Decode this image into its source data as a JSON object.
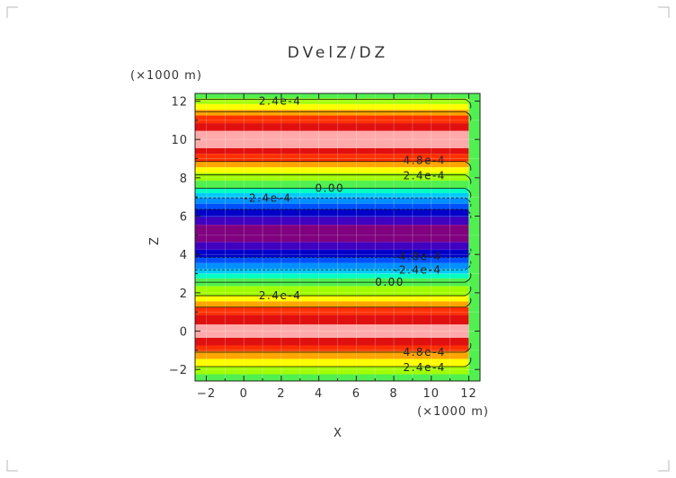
{
  "chart_data": {
    "type": "heatmap",
    "title": "DVelZ/DZ",
    "xlabel": "X",
    "ylabel": "Z",
    "x_unit_label": "(×1000 m)",
    "y_unit_label": "(×1000 m)",
    "xlim": [
      -2.6,
      12.6
    ],
    "ylim": [
      -2.6,
      12.4
    ],
    "x_ticks": [
      -2,
      0,
      2,
      4,
      6,
      8,
      10,
      12
    ],
    "y_ticks": [
      -2,
      0,
      2,
      4,
      6,
      8,
      10,
      12
    ],
    "grid": true,
    "colormap": {
      "levels": [
        -0.00072,
        -0.0006,
        -0.00048,
        -0.00036,
        -0.00024,
        -0.00012,
        0.0,
        0.00012,
        0.00024,
        0.00036,
        0.00048,
        0.0006,
        0.00072
      ],
      "colors": [
        "#800080",
        "#4000c0",
        "#0000c8",
        "#0050ff",
        "#0090ff",
        "#00c8ff",
        "#00ffc0",
        "#50f050",
        "#a0ff00",
        "#ffff00",
        "#ffa500",
        "#ff3000",
        "#e01010",
        "#ffaaaa"
      ]
    },
    "field": {
      "description": "DVelZ/DZ varies with Z only, x-independent except near x = 12",
      "bands_z": [
        {
          "z_from": -2.6,
          "z_to": -2.25,
          "value": 6e-05
        },
        {
          "z_from": -2.25,
          "z_to": -1.85,
          "value": 0.00018
        },
        {
          "z_from": -1.85,
          "z_to": -1.45,
          "value": 0.0003
        },
        {
          "z_from": -1.45,
          "z_to": -1.05,
          "value": 0.00042
        },
        {
          "z_from": -1.05,
          "z_to": -0.75,
          "value": 0.00054
        },
        {
          "z_from": -0.75,
          "z_to": -0.35,
          "value": 0.00066
        },
        {
          "z_from": -0.35,
          "z_to": 0.35,
          "value": 0.00078
        },
        {
          "z_from": 0.35,
          "z_to": 0.85,
          "value": 0.00066
        },
        {
          "z_from": 0.85,
          "z_to": 1.25,
          "value": 0.00054
        },
        {
          "z_from": 1.25,
          "z_to": 1.55,
          "value": 0.00042
        },
        {
          "z_from": 1.55,
          "z_to": 1.85,
          "value": 0.0003
        },
        {
          "z_from": 1.85,
          "z_to": 2.35,
          "value": 0.00018
        },
        {
          "z_from": 2.35,
          "z_to": 2.75,
          "value": 6e-05
        },
        {
          "z_from": 2.75,
          "z_to": 3.0,
          "value": -6e-05
        },
        {
          "z_from": 3.0,
          "z_to": 3.25,
          "value": -0.00018
        },
        {
          "z_from": 3.25,
          "z_to": 3.55,
          "value": -0.0003
        },
        {
          "z_from": 3.55,
          "z_to": 3.85,
          "value": -0.00042
        },
        {
          "z_from": 3.85,
          "z_to": 4.25,
          "value": -0.00054
        },
        {
          "z_from": 4.25,
          "z_to": 4.65,
          "value": -0.00066
        },
        {
          "z_from": 4.65,
          "z_to": 5.55,
          "value": -0.00078
        },
        {
          "z_from": 5.55,
          "z_to": 5.95,
          "value": -0.00066
        },
        {
          "z_from": 5.95,
          "z_to": 6.35,
          "value": -0.00054
        },
        {
          "z_from": 6.35,
          "z_to": 6.65,
          "value": -0.00042
        },
        {
          "z_from": 6.65,
          "z_to": 6.95,
          "value": -0.0003
        },
        {
          "z_from": 6.95,
          "z_to": 7.2,
          "value": -0.00018
        },
        {
          "z_from": 7.2,
          "z_to": 7.45,
          "value": -6e-05
        },
        {
          "z_from": 7.45,
          "z_to": 7.85,
          "value": 6e-05
        },
        {
          "z_from": 7.85,
          "z_to": 8.25,
          "value": 0.00018
        },
        {
          "z_from": 8.25,
          "z_to": 8.55,
          "value": 0.0003
        },
        {
          "z_from": 8.55,
          "z_to": 8.85,
          "value": 0.00042
        },
        {
          "z_from": 8.85,
          "z_to": 9.25,
          "value": 0.00054
        },
        {
          "z_from": 9.25,
          "z_to": 9.55,
          "value": 0.00066
        },
        {
          "z_from": 9.55,
          "z_to": 10.45,
          "value": 0.00078
        },
        {
          "z_from": 10.45,
          "z_to": 10.85,
          "value": 0.00066
        },
        {
          "z_from": 10.85,
          "z_to": 11.25,
          "value": 0.00054
        },
        {
          "z_from": 11.25,
          "z_to": 11.55,
          "value": 0.00042
        },
        {
          "z_from": 11.55,
          "z_to": 11.85,
          "value": 0.0003
        },
        {
          "z_from": 11.85,
          "z_to": 12.15,
          "value": 0.00018
        },
        {
          "z_from": 12.15,
          "z_to": 12.4,
          "value": 6e-05
        }
      ],
      "edge_x_from": 12.0,
      "edge_value": 0.0001
    },
    "contour_labels": [
      {
        "text": "2.4e-4",
        "x": 0.8,
        "z": 12.0,
        "dashed": false
      },
      {
        "text": "4.8e-4",
        "x": 8.5,
        "z": 8.9,
        "dashed": false
      },
      {
        "text": "2.4e-4",
        "x": 8.5,
        "z": 8.1,
        "dashed": false
      },
      {
        "text": "0.00",
        "x": 3.8,
        "z": 7.45,
        "dashed": false
      },
      {
        "text": "-2.4e-4",
        "x": 0.0,
        "z": 6.95,
        "dashed": true
      },
      {
        "text": "-4.8e-4",
        "x": 8.0,
        "z": 3.9,
        "dashed": true
      },
      {
        "text": "-2.4e-4",
        "x": 8.0,
        "z": 3.2,
        "dashed": true
      },
      {
        "text": "0.00",
        "x": 7.0,
        "z": 2.55,
        "dashed": false
      },
      {
        "text": "2.4e-4",
        "x": 0.8,
        "z": 1.85,
        "dashed": false
      },
      {
        "text": "4.8e-4",
        "x": 8.5,
        "z": -1.1,
        "dashed": false
      },
      {
        "text": "2.4e-4",
        "x": 8.5,
        "z": -1.9,
        "dashed": false
      }
    ],
    "contour_lines": [
      {
        "z": 12.1,
        "dashed": false
      },
      {
        "z": 11.45,
        "dashed": false
      },
      {
        "z": 8.85,
        "dashed": false
      },
      {
        "z": 8.15,
        "dashed": false
      },
      {
        "z": 7.45,
        "dashed": false
      },
      {
        "z": 6.95,
        "dashed": true
      },
      {
        "z": 6.35,
        "dashed": true
      },
      {
        "z": 3.85,
        "dashed": true
      },
      {
        "z": 3.2,
        "dashed": true
      },
      {
        "z": 2.55,
        "dashed": false
      },
      {
        "z": 1.85,
        "dashed": false
      },
      {
        "z": 1.25,
        "dashed": false
      },
      {
        "z": -1.1,
        "dashed": false
      },
      {
        "z": -1.85,
        "dashed": false
      }
    ]
  }
}
